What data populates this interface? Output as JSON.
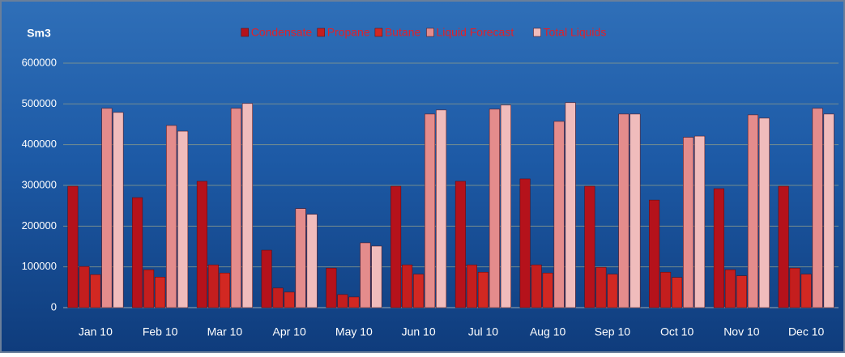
{
  "chart_data": {
    "type": "bar",
    "y_label": "Sm3",
    "categories": [
      "Jan 10",
      "Feb 10",
      "Mar 10",
      "Apr 10",
      "May 10",
      "Jun 10",
      "Jul 10",
      "Aug 10",
      "Sep 10",
      "Oct 10",
      "Nov 10",
      "Dec 10"
    ],
    "series": [
      {
        "name": "Condensate",
        "color": "#b5121b",
        "values": [
          298000,
          270000,
          310000,
          141000,
          97000,
          298000,
          310000,
          316000,
          298000,
          264000,
          292000,
          298000
        ]
      },
      {
        "name": "Propane",
        "color": "#c41e1e",
        "values": [
          101000,
          93000,
          105000,
          48000,
          32000,
          105000,
          105000,
          105000,
          99000,
          87000,
          93000,
          97000
        ]
      },
      {
        "name": "Butane",
        "color": "#d22822",
        "values": [
          81000,
          75000,
          85000,
          38000,
          26000,
          82000,
          87000,
          85000,
          82000,
          74000,
          78000,
          82000
        ]
      },
      {
        "name": "Liquid Forecast",
        "color": "#e48c8c",
        "values": [
          489000,
          447000,
          489000,
          243000,
          159000,
          475000,
          487000,
          457000,
          475000,
          418000,
          473000,
          489000
        ]
      },
      {
        "name": "Total Liquids",
        "color": "#f0bcbc",
        "values": [
          479000,
          433000,
          501000,
          229000,
          151000,
          485000,
          497000,
          503000,
          475000,
          421000,
          465000,
          475000
        ]
      }
    ],
    "ylim": [
      0,
      600000
    ],
    "yticks": [
      0,
      100000,
      200000,
      300000,
      400000,
      500000,
      600000
    ],
    "grid": true,
    "legend": "top"
  }
}
